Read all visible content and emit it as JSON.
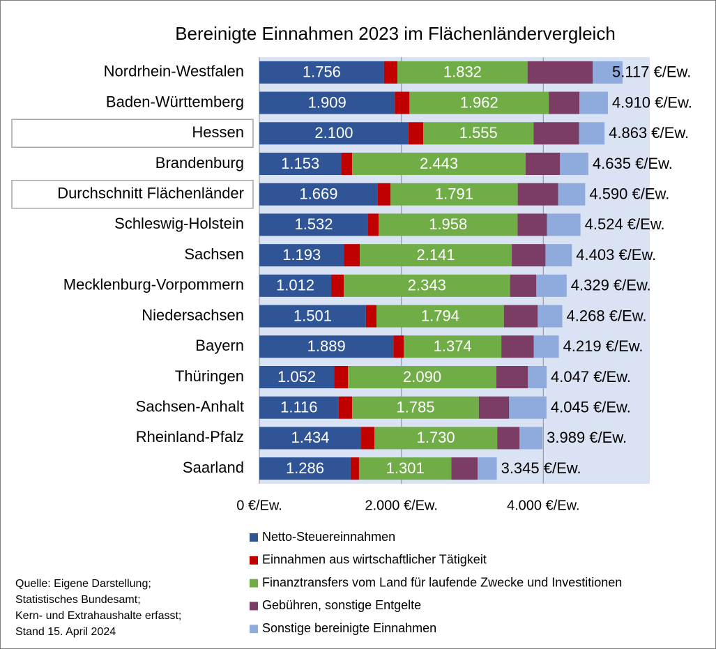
{
  "chart_data": {
    "type": "bar",
    "orientation": "horizontal",
    "stacked": true,
    "title": "Bereinigte Einnahmen 2023 im Flächenländervergleich",
    "categories": [
      "Nordrhein-Westfalen",
      "Baden-Württemberg",
      "Hessen",
      "Brandenburg",
      "Durchschnitt Flächenländer",
      "Schleswig-Holstein",
      "Sachsen",
      "Mecklenburg-Vorpommern",
      "Niedersachsen",
      "Bayern",
      "Thüringen",
      "Sachsen-Anhalt",
      "Rheinland-Pfalz",
      "Saarland"
    ],
    "highlight": [
      2,
      4
    ],
    "series": [
      {
        "name": "Netto-Steuereinnahmen",
        "color": "#2f5597",
        "values": [
          1756,
          1909,
          2100,
          1153,
          1669,
          1532,
          1193,
          1012,
          1501,
          1889,
          1052,
          1116,
          1434,
          1286
        ],
        "value_labels": [
          "1.756",
          "1.909",
          "2.100",
          "1.153",
          "1.669",
          "1.532",
          "1.193",
          "1.012",
          "1.501",
          "1.889",
          "1.052",
          "1.116",
          "1.434",
          "1.286"
        ]
      },
      {
        "name": "Einnahmen aus wirtschaftlicher Tätigkeit",
        "color": "#c00000",
        "values": [
          190,
          206,
          209,
          155,
          180,
          148,
          222,
          177,
          150,
          146,
          197,
          191,
          187,
          118
        ]
      },
      {
        "name": "Finanztransfers vom Land für laufende Zwecke und Investitionen",
        "color": "#70ad47",
        "values": [
          1832,
          1962,
          1555,
          2443,
          1791,
          1958,
          2141,
          2343,
          1794,
          1374,
          2090,
          1785,
          1730,
          1301
        ],
        "value_labels": [
          "1.832",
          "1.962",
          "1.555",
          "2.443",
          "1.791",
          "1.958",
          "2.141",
          "2.343",
          "1.794",
          "1.374",
          "2.090",
          "1.785",
          "1.730",
          "1.301"
        ]
      },
      {
        "name": "Gebühren, sonstige Entgelte",
        "color": "#7b3d63",
        "values": [
          920,
          432,
          639,
          485,
          570,
          413,
          475,
          370,
          477,
          456,
          445,
          427,
          315,
          370
        ]
      },
      {
        "name": "Sonstige bereinigte Einnahmen",
        "color": "#8faadc",
        "values": [
          419,
          401,
          360,
          399,
          380,
          473,
          372,
          427,
          346,
          354,
          263,
          526,
          323,
          270
        ]
      }
    ],
    "totals": [
      5117,
      4910,
      4863,
      4635,
      4590,
      4524,
      4403,
      4329,
      4268,
      4219,
      4047,
      4045,
      3989,
      3345
    ],
    "total_labels": [
      "5.117 €/Ew.",
      "4.910 €/Ew.",
      "4.863 €/Ew.",
      "4.635 €/Ew.",
      "4.590 €/Ew.",
      "4.524 €/Ew.",
      "4.403 €/Ew.",
      "4.329 €/Ew.",
      "4.268 €/Ew.",
      "4.219 €/Ew.",
      "4.047 €/Ew.",
      "4.045 €/Ew.",
      "3.989 €/Ew.",
      "3.345 €/Ew."
    ],
    "xlim": [
      0,
      5500
    ],
    "xticks": [
      {
        "value": 0,
        "label": "0 €/Ew."
      },
      {
        "value": 2000,
        "label": "2.000 €/Ew."
      },
      {
        "value": 4000,
        "label": "4.000 €/Ew."
      }
    ],
    "grid": true,
    "background": "#dae3f3",
    "source": [
      "Quelle: Eigene Darstellung;",
      "Statistisches Bundesamt;",
      "Kern- und Extrahaushalte erfasst;",
      "Stand 15. April 2024"
    ]
  }
}
